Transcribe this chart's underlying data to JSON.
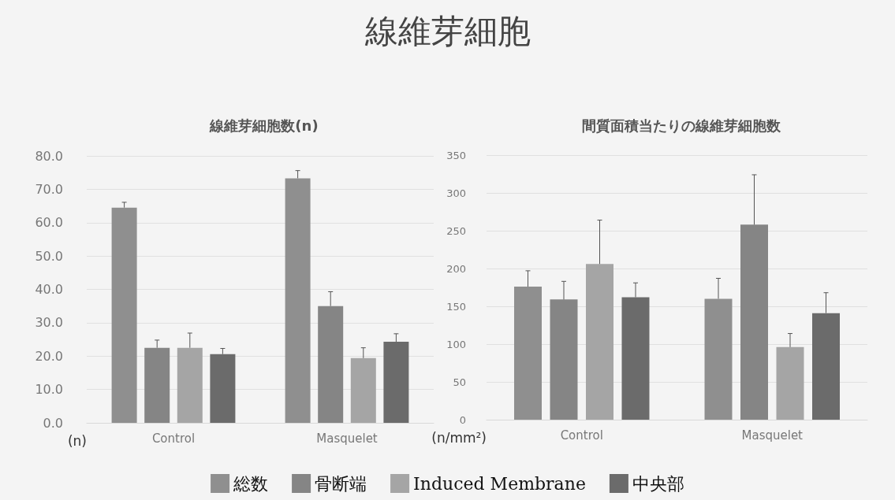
{
  "chart_data": [
    {
      "type": "bar",
      "title": "線維芽細胞数(n)",
      "annotations": [
        "線維芽細胞"
      ],
      "ylabel": "(n)",
      "categories": [
        "Control",
        "Masquelet"
      ],
      "legend": "bottom",
      "grid": "y",
      "ylim": [
        0,
        80
      ],
      "yticks": [
        {
          "value": 0,
          "label": "0.0"
        },
        {
          "value": 10,
          "label": "10.0"
        },
        {
          "value": 20,
          "label": "20.0"
        },
        {
          "value": 30,
          "label": "30.0"
        },
        {
          "value": 40,
          "label": "40.0"
        },
        {
          "value": 50,
          "label": "50.0"
        },
        {
          "value": 60,
          "label": "60.0"
        },
        {
          "value": 70,
          "label": "70.0"
        },
        {
          "value": 80,
          "label": "80.0"
        }
      ],
      "series": [
        {
          "name": "総数",
          "color": "#8f8f8f",
          "values": [
            64.5,
            73.3
          ],
          "errors": [
            [
              64.5,
              66.1
            ],
            [
              73.3,
              75.6
            ]
          ]
        },
        {
          "name": "骨断端",
          "color": "#858585",
          "values": [
            22.5,
            35.0
          ],
          "errors": [
            [
              22.5,
              24.8
            ],
            [
              35.0,
              39.3
            ]
          ]
        },
        {
          "name": "Induced Membrane",
          "color": "#a5a5a5",
          "values": [
            22.5,
            19.4
          ],
          "errors": [
            [
              22.5,
              26.9
            ],
            [
              19.4,
              22.5
            ]
          ]
        },
        {
          "name": "中央部",
          "color": "#6b6b6b",
          "values": [
            20.6,
            24.3
          ],
          "errors": [
            [
              20.6,
              22.3
            ],
            [
              24.3,
              26.7
            ]
          ]
        }
      ]
    },
    {
      "type": "bar",
      "title": "間質面積当たりの線維芽細胞数",
      "ylabel": "(n/mm²)",
      "categories": [
        "Control",
        "Masquelet"
      ],
      "grid": "y",
      "ylim": [
        0,
        350
      ],
      "yticks": [
        0,
        50,
        100,
        150,
        200,
        250,
        300,
        350
      ],
      "series": [
        {
          "color": "#8f8f8f",
          "values": [
            176,
            160
          ],
          "errors": [
            [
              176,
              197
            ],
            [
              160,
              187
            ]
          ]
        },
        {
          "color": "#858585",
          "values": [
            159,
            258
          ],
          "errors": [
            [
              159,
              183
            ],
            [
              258,
              324
            ]
          ]
        },
        {
          "color": "#a5a5a5",
          "values": [
            206,
            96
          ],
          "errors": [
            [
              206,
              264
            ],
            [
              96,
              114
            ]
          ]
        },
        {
          "color": "#6b6b6b",
          "values": [
            162,
            141
          ],
          "errors": [
            [
              162,
              181
            ],
            [
              141,
              168
            ]
          ]
        }
      ]
    }
  ]
}
